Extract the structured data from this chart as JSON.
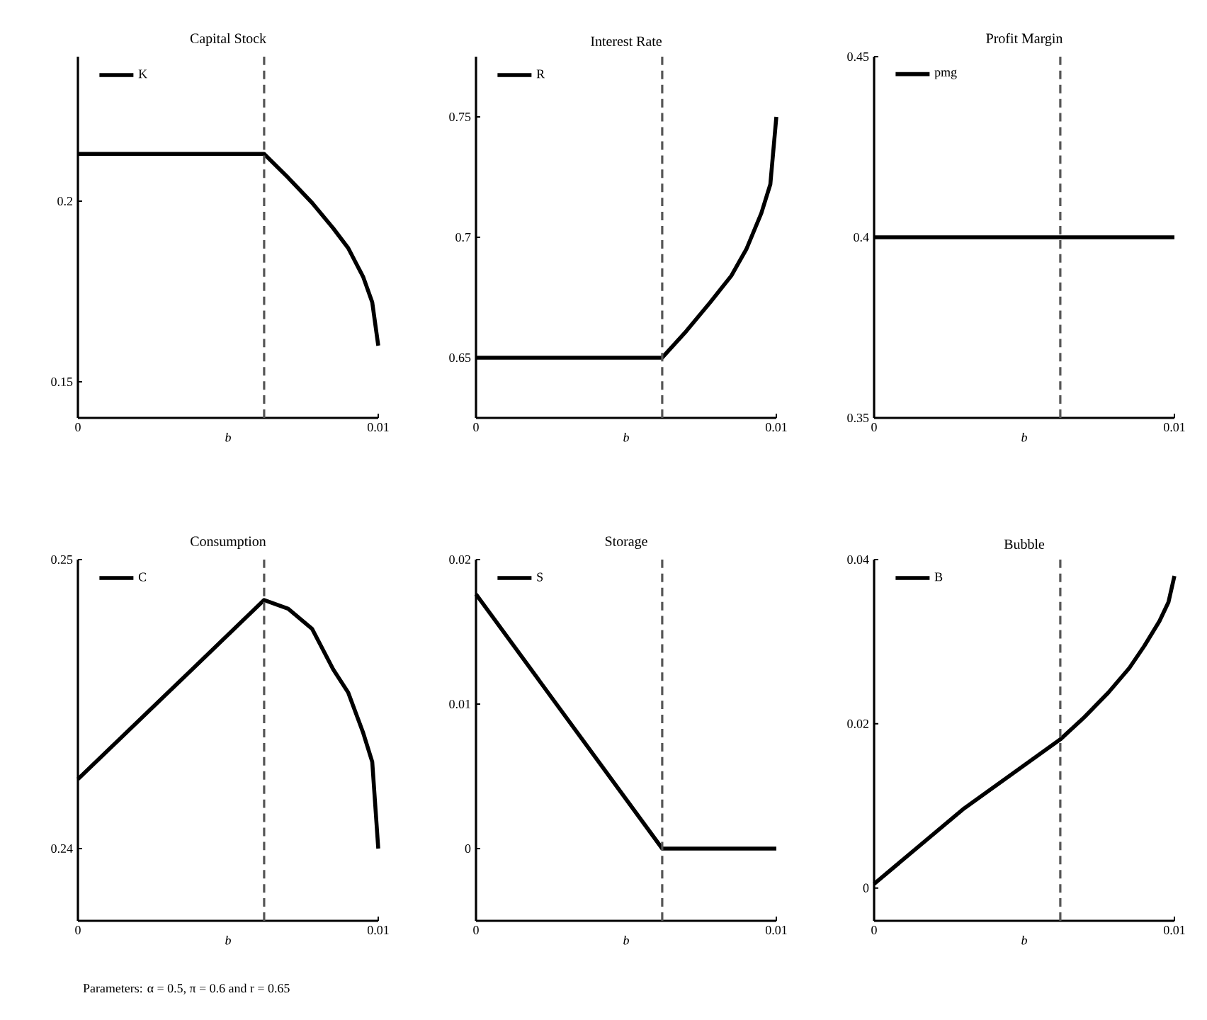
{
  "chart_data": [
    {
      "type": "line",
      "title": "Capital Stock",
      "xlabel": "b",
      "xlim": [
        0,
        0.01
      ],
      "xticks": [
        0,
        0.01
      ],
      "ylim": [
        0.14,
        0.24
      ],
      "yticks": [
        0.15,
        0.2
      ],
      "legend": "top left",
      "ref_lines": [
        {
          "axis": "x",
          "value": 0.0062,
          "color": "#555555",
          "line_style": "dashed"
        }
      ],
      "series": [
        {
          "name": "K",
          "color": "#000000",
          "x": [
            0,
            0.0062,
            0.007,
            0.0078,
            0.0085,
            0.009,
            0.0095,
            0.0098,
            0.01
          ],
          "values": [
            0.2131,
            0.2131,
            0.2065,
            0.1995,
            0.1925,
            0.187,
            0.179,
            0.172,
            0.16
          ]
        }
      ]
    },
    {
      "type": "line",
      "title": "Interest Rate",
      "xlabel": "b",
      "xlim": [
        0,
        0.01
      ],
      "xticks": [
        0,
        0.01
      ],
      "ylim": [
        0.625,
        0.775
      ],
      "yticks": [
        0.65,
        0.7,
        0.75
      ],
      "legend": "top left",
      "ref_lines": [
        {
          "axis": "x",
          "value": 0.0062,
          "color": "#555555",
          "line_style": "dashed"
        }
      ],
      "series": [
        {
          "name": "R",
          "color": "#000000",
          "x": [
            0,
            0.0062,
            0.007,
            0.0078,
            0.0085,
            0.009,
            0.0095,
            0.0098,
            0.01
          ],
          "values": [
            0.65,
            0.65,
            0.661,
            0.673,
            0.684,
            0.695,
            0.71,
            0.722,
            0.75
          ]
        }
      ]
    },
    {
      "type": "line",
      "title": "Profit Margin",
      "xlabel": "b",
      "xlim": [
        0,
        0.01
      ],
      "xticks": [
        0,
        0.01
      ],
      "ylim": [
        0.35,
        0.45
      ],
      "yticks": [
        0.35,
        0.4,
        0.45
      ],
      "legend": "top left",
      "ref_lines": [
        {
          "axis": "x",
          "value": 0.0062,
          "color": "#555555",
          "line_style": "dashed"
        }
      ],
      "series": [
        {
          "name": "pmg",
          "color": "#000000",
          "x": [
            0,
            0.01
          ],
          "values": [
            0.4,
            0.4
          ]
        }
      ]
    },
    {
      "type": "line",
      "title": "Consumption",
      "xlabel": "b",
      "xlim": [
        0,
        0.01
      ],
      "xticks": [
        0,
        0.01
      ],
      "ylim": [
        0.2375,
        0.25
      ],
      "yticks": [
        0.24,
        0.25
      ],
      "legend": "top left",
      "ref_lines": [
        {
          "axis": "x",
          "value": 0.0062,
          "color": "#555555",
          "line_style": "dashed"
        }
      ],
      "annotations": [
        "Parameters: α = 0.5, π = 0.6 and r = 0.65"
      ],
      "series": [
        {
          "name": "C",
          "color": "#000000",
          "x": [
            0,
            0.0062,
            0.007,
            0.0078,
            0.0085,
            0.009,
            0.0095,
            0.0098,
            0.01
          ],
          "values": [
            0.2424,
            0.2486,
            0.2483,
            0.2476,
            0.2462,
            0.2454,
            0.244,
            0.243,
            0.24
          ]
        }
      ]
    },
    {
      "type": "line",
      "title": "Storage",
      "xlabel": "b",
      "xlim": [
        0,
        0.01
      ],
      "xticks": [
        0,
        0.01
      ],
      "ylim": [
        -0.005,
        0.02
      ],
      "yticks": [
        0,
        0.01,
        0.02
      ],
      "legend": "top left",
      "ref_lines": [
        {
          "axis": "x",
          "value": 0.0062,
          "color": "#555555",
          "line_style": "dashed"
        }
      ],
      "series": [
        {
          "name": "S",
          "color": "#000000",
          "x": [
            0,
            0.0062,
            0.01
          ],
          "values": [
            0.0176,
            0,
            0
          ]
        }
      ]
    },
    {
      "type": "line",
      "title": "Bubble",
      "xlabel": "b",
      "xlim": [
        0,
        0.01
      ],
      "xticks": [
        0,
        0.01
      ],
      "ylim": [
        -0.004,
        0.04
      ],
      "yticks": [
        0,
        0.02,
        0.04
      ],
      "legend": "top left",
      "ref_lines": [
        {
          "axis": "x",
          "value": 0.0062,
          "color": "#555555",
          "line_style": "dashed"
        }
      ],
      "series": [
        {
          "name": "B",
          "color": "#000000",
          "x": [
            0,
            0.003,
            0.0062,
            0.007,
            0.0078,
            0.0085,
            0.009,
            0.0095,
            0.0098,
            0.01
          ],
          "values": [
            0.0005,
            0.0097,
            0.0181,
            0.0208,
            0.0238,
            0.0268,
            0.0295,
            0.0325,
            0.0348,
            0.038
          ]
        }
      ]
    }
  ]
}
